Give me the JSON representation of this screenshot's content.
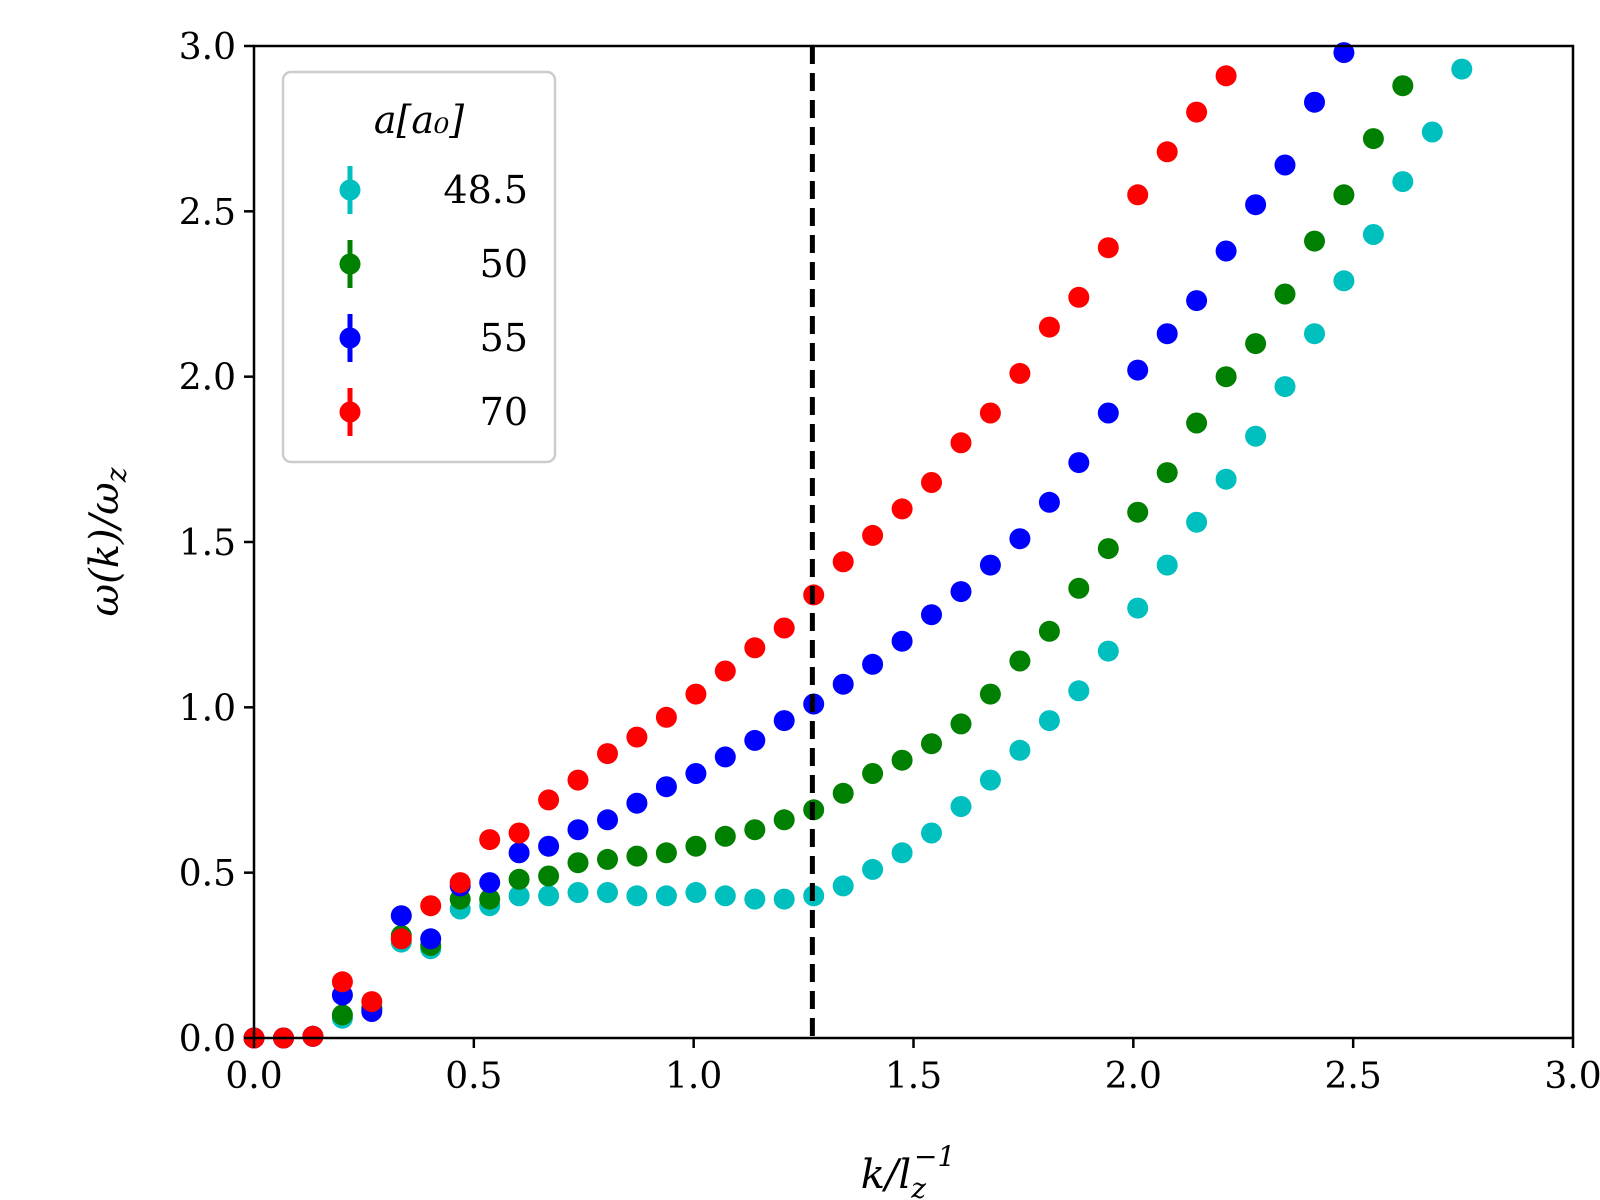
{
  "chart_data": {
    "type": "scatter",
    "title": "",
    "xlabel_main": "k/l",
    "xlabel_sub": "z",
    "xlabel_sup": "−1",
    "ylabel": "ω(k)/ω",
    "ylabel_sub": "z",
    "xlim": [
      0.0,
      3.0
    ],
    "ylim": [
      0.0,
      3.0
    ],
    "xticks": [
      "0.0",
      "0.5",
      "1.0",
      "1.5",
      "2.0",
      "2.5",
      "3.0"
    ],
    "yticks": [
      "0.0",
      "0.5",
      "1.0",
      "1.5",
      "2.0",
      "2.5",
      "3.0"
    ],
    "vline_x": 1.27,
    "grid": false,
    "legend": {
      "title": "a[a₀]",
      "placement": "top-left"
    },
    "x": [
      0.0,
      0.067,
      0.134,
      0.201,
      0.268,
      0.335,
      0.402,
      0.469,
      0.536,
      0.603,
      0.67,
      0.737,
      0.804,
      0.871,
      0.938,
      1.005,
      1.072,
      1.139,
      1.206,
      1.273,
      1.34,
      1.407,
      1.474,
      1.541,
      1.608,
      1.675,
      1.742,
      1.809,
      1.876,
      1.943,
      2.01,
      2.077,
      2.144,
      2.211,
      2.278,
      2.345,
      2.412,
      2.479,
      2.546,
      2.613,
      2.68,
      2.747
    ],
    "series": [
      {
        "name": "48.5",
        "color": "#00bfbf",
        "values": [
          0.0,
          0.0,
          0.005,
          0.06,
          0.09,
          0.29,
          0.27,
          0.39,
          0.4,
          0.43,
          0.43,
          0.44,
          0.44,
          0.43,
          0.43,
          0.44,
          0.43,
          0.42,
          0.42,
          0.43,
          0.46,
          0.51,
          0.56,
          0.62,
          0.7,
          0.78,
          0.87,
          0.96,
          1.05,
          1.17,
          1.3,
          1.43,
          1.56,
          1.69,
          1.82,
          1.97,
          2.13,
          2.29,
          2.43,
          2.59,
          2.74,
          2.93
        ]
      },
      {
        "name": "50",
        "color": "#008000",
        "values": [
          0.0,
          0.0,
          0.005,
          0.07,
          0.09,
          0.31,
          0.28,
          0.42,
          0.42,
          0.48,
          0.49,
          0.53,
          0.54,
          0.55,
          0.56,
          0.58,
          0.61,
          0.63,
          0.66,
          0.69,
          0.74,
          0.8,
          0.84,
          0.89,
          0.95,
          1.04,
          1.14,
          1.23,
          1.36,
          1.48,
          1.59,
          1.71,
          1.86,
          2.0,
          2.1,
          2.25,
          2.41,
          2.55,
          2.72,
          2.88
        ]
      },
      {
        "name": "55",
        "color": "#0000ff",
        "values": [
          0.0,
          0.0,
          0.005,
          0.13,
          0.08,
          0.37,
          0.3,
          0.46,
          0.47,
          0.56,
          0.58,
          0.63,
          0.66,
          0.71,
          0.76,
          0.8,
          0.85,
          0.9,
          0.96,
          1.01,
          1.07,
          1.13,
          1.2,
          1.28,
          1.35,
          1.43,
          1.51,
          1.62,
          1.74,
          1.89,
          2.02,
          2.13,
          2.23,
          2.38,
          2.52,
          2.64,
          2.83,
          2.98
        ]
      },
      {
        "name": "70",
        "color": "#ff0000",
        "values": [
          0.0,
          0.0,
          0.005,
          0.17,
          0.11,
          0.3,
          0.4,
          0.47,
          0.6,
          0.62,
          0.72,
          0.78,
          0.86,
          0.91,
          0.97,
          1.04,
          1.11,
          1.18,
          1.24,
          1.34,
          1.44,
          1.52,
          1.6,
          1.68,
          1.8,
          1.89,
          2.01,
          2.15,
          2.24,
          2.39,
          2.55,
          2.68,
          2.8,
          2.91
        ]
      }
    ]
  }
}
